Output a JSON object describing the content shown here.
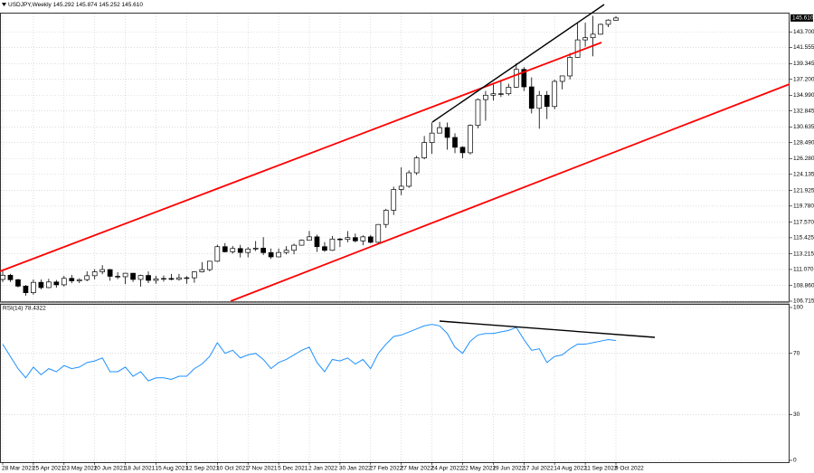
{
  "chart_data": [
    {
      "type": "candlestick",
      "title": "USDJPY,Weekly  145.292 145.874 145.252 145.610",
      "categories": [
        "28 Mar 2021",
        null,
        null,
        null,
        "25 Apr 2021",
        null,
        null,
        null,
        "23 May 2021",
        null,
        null,
        null,
        "20 Jun 2021",
        null,
        null,
        null,
        "18 Jul 2021",
        null,
        null,
        null,
        "15 Aug 2021",
        null,
        null,
        null,
        "12 Sep 2021",
        null,
        null,
        null,
        "10 Oct 2021",
        null,
        null,
        null,
        "7 Nov 2021",
        null,
        null,
        null,
        "5 Dec 2021",
        null,
        null,
        null,
        "2 Jan 2022",
        null,
        null,
        null,
        "30 Jan 2022",
        null,
        null,
        null,
        "27 Feb 2022",
        null,
        null,
        null,
        "27 Mar 2022",
        null,
        null,
        null,
        "24 Apr 2022",
        null,
        null,
        null,
        "22 May 2022",
        null,
        null,
        null,
        "19 Jun 2022",
        null,
        null,
        null,
        "17 Jul 2022",
        null,
        null,
        null,
        "14 Aug 2022",
        null,
        null,
        null,
        "11 Sep 2022",
        null,
        null,
        null,
        "9 Oct 2022"
      ],
      "open": [
        109.7,
        110.28,
        109.66,
        108.78,
        107.88,
        109.3,
        108.58,
        109.35,
        108.96,
        109.85,
        109.5,
        109.67,
        110.21,
        110.75,
        111.05,
        110.13,
        110.07,
        110.55,
        109.7,
        110.25,
        109.57,
        109.78,
        109.83,
        109.71,
        109.93,
        109.93,
        110.74,
        111.05,
        112.2,
        114.2,
        113.5,
        113.95,
        113.4,
        113.88,
        114.0,
        113.38,
        112.8,
        113.4,
        113.7,
        114.4,
        115.08,
        115.55,
        114.2,
        113.7,
        115.25,
        115.2,
        115.45,
        115.0,
        115.55,
        114.8,
        117.25,
        119.2,
        122.05,
        122.5,
        124.35,
        126.4,
        128.5,
        129.8,
        130.55,
        129.2,
        127.85,
        127.1,
        130.85,
        134.4,
        135.0,
        135.2,
        135.2,
        136.1,
        138.55,
        136.15,
        133.2,
        135.0,
        133.45,
        136.9,
        137.65,
        140.2,
        142.6,
        142.9,
        143.38,
        144.73,
        145.292
      ],
      "high": [
        110.97,
        110.48,
        109.78,
        108.95,
        109.7,
        109.7,
        109.79,
        109.62,
        110.2,
        110.33,
        109.85,
        110.82,
        111.11,
        111.66,
        111.14,
        110.7,
        110.6,
        110.59,
        110.35,
        110.8,
        110.2,
        110.25,
        110.45,
        110.45,
        110.16,
        110.8,
        112.08,
        112.25,
        114.47,
        114.7,
        114.3,
        114.45,
        114.15,
        114.97,
        115.52,
        113.95,
        113.95,
        114.26,
        114.62,
        115.18,
        116.35,
        115.84,
        114.84,
        115.68,
        115.4,
        116.34,
        116.0,
        115.76,
        115.81,
        117.28,
        119.4,
        122.45,
        125.1,
        124.68,
        126.68,
        129.41,
        131.26,
        131.34,
        131.25,
        129.77,
        128.0,
        130.99,
        134.56,
        135.59,
        136.71,
        137.0,
        136.58,
        139.39,
        138.87,
        137.45,
        135.59,
        135.58,
        137.14,
        137.69,
        140.8,
        144.99,
        144.96,
        145.9,
        144.85,
        145.44,
        145.874
      ],
      "low": [
        109.36,
        109.35,
        108.61,
        107.48,
        107.6,
        108.34,
        108.5,
        108.56,
        108.73,
        109.18,
        109.19,
        109.45,
        109.71,
        110.42,
        109.52,
        109.74,
        109.06,
        109.35,
        108.72,
        109.2,
        109.11,
        109.4,
        109.59,
        109.55,
        109.11,
        109.25,
        110.65,
        110.82,
        112.09,
        113.41,
        113.25,
        112.72,
        112.73,
        113.59,
        113.05,
        112.53,
        112.76,
        113.14,
        113.15,
        114.37,
        115.06,
        113.48,
        113.48,
        113.62,
        114.17,
        114.8,
        114.78,
        114.4,
        114.65,
        114.6,
        116.78,
        118.55,
        121.28,
        122.28,
        124.05,
        126.2,
        126.95,
        129.77,
        127.52,
        127.04,
        126.36,
        126.86,
        130.45,
        131.5,
        134.27,
        134.75,
        134.95,
        136.0,
        135.57,
        132.5,
        130.4,
        131.73,
        133.08,
        135.8,
        137.17,
        140.14,
        141.66,
        140.35,
        143.3,
        144.36,
        145.252
      ],
      "close": [
        110.28,
        109.66,
        108.78,
        107.88,
        109.3,
        108.58,
        109.35,
        108.96,
        109.85,
        109.5,
        109.67,
        110.21,
        110.75,
        111.05,
        110.13,
        110.07,
        110.55,
        109.7,
        110.25,
        109.57,
        109.78,
        109.83,
        109.71,
        109.93,
        109.93,
        110.74,
        111.05,
        112.2,
        114.2,
        113.5,
        113.95,
        113.4,
        113.88,
        114.0,
        113.38,
        112.8,
        113.4,
        113.7,
        114.4,
        115.08,
        115.55,
        114.2,
        113.7,
        115.25,
        115.2,
        115.45,
        115.0,
        115.55,
        114.8,
        117.25,
        119.2,
        122.05,
        122.5,
        124.35,
        126.4,
        128.5,
        129.8,
        130.55,
        129.2,
        127.85,
        127.1,
        130.85,
        134.4,
        135.0,
        135.2,
        135.2,
        136.1,
        138.55,
        136.15,
        133.2,
        135.0,
        133.45,
        136.9,
        137.65,
        140.2,
        142.6,
        142.9,
        143.38,
        144.73,
        145.32,
        145.61
      ],
      "up_color": "#ffffff",
      "down_color": "#000000",
      "current_price": 145.61,
      "current_price_label": "145.610",
      "ylim": [
        106.715,
        146.34
      ],
      "yticks": [
        106.715,
        {
          "value": 108.86,
          "label": "108.860"
        },
        {
          "value": 111.07,
          "label": "111.070"
        },
        113.215,
        115.425,
        {
          "value": 117.57,
          "label": "117.570"
        },
        {
          "value": 119.78,
          "label": "119.780"
        },
        121.925,
        124.135,
        {
          "value": 126.28,
          "label": "126.280"
        },
        {
          "value": 128.49,
          "label": "128.490"
        },
        130.635,
        132.845,
        {
          "value": 134.99,
          "label": "134.990"
        },
        {
          "value": 137.2,
          "label": "137.200"
        },
        139.345,
        141.555,
        {
          "value": 143.7,
          "label": "143.700"
        }
      ],
      "grid": true
    },
    {
      "type": "line",
      "title": "RSI(14) 78.4322",
      "color": "#1e90ff",
      "values": [
        76,
        68,
        60,
        54,
        61,
        56,
        60,
        58,
        62,
        60,
        61,
        64,
        65,
        67,
        58,
        58,
        61,
        55,
        58,
        52,
        54,
        54,
        53,
        55,
        55,
        60,
        63,
        68,
        77,
        70,
        72,
        67,
        69,
        70,
        66,
        60,
        64,
        66,
        69,
        72,
        74,
        64,
        58,
        66,
        65,
        67,
        63,
        66,
        60,
        70,
        76,
        81,
        82,
        84,
        86,
        88,
        89,
        88,
        83,
        74,
        70,
        78,
        82,
        83,
        83,
        84,
        85,
        87,
        79,
        72,
        73,
        64,
        68,
        69,
        73,
        76,
        76,
        77,
        78,
        79,
        78.4322
      ],
      "ylim": [
        0,
        100
      ],
      "yticks": [
        0,
        30,
        70,
        100
      ],
      "grid": true
    }
  ]
}
